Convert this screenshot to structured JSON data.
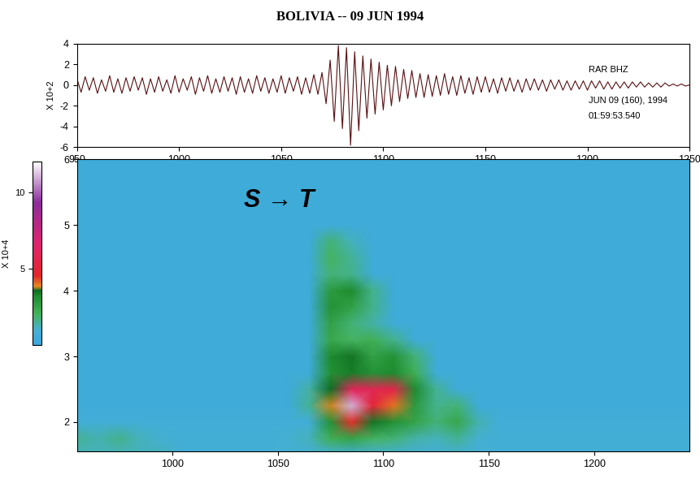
{
  "chart_data": [
    {
      "type": "line",
      "title": "BOLIVIA -- 09 JUN 1994",
      "y_label": "X 10+2",
      "annotations": [
        "RAR BHZ",
        "JUN 09 (160), 1994",
        "01:59:53.540"
      ],
      "xlim": [
        950,
        1250
      ],
      "xticks": [
        950,
        1000,
        1050,
        1100,
        1150,
        1200,
        1250
      ],
      "ylim": [
        -6,
        4
      ],
      "yticks": [
        -6,
        -4,
        -2,
        0,
        2,
        4
      ],
      "series": [
        {
          "color": "#5a0f12",
          "x": [
            950,
            952,
            954,
            956,
            958,
            960,
            962,
            964,
            966,
            968,
            970,
            972,
            974,
            976,
            978,
            980,
            982,
            984,
            986,
            988,
            990,
            992,
            994,
            996,
            998,
            1000,
            1002,
            1004,
            1006,
            1008,
            1010,
            1012,
            1014,
            1016,
            1018,
            1020,
            1022,
            1024,
            1026,
            1028,
            1030,
            1032,
            1034,
            1036,
            1038,
            1040,
            1042,
            1044,
            1046,
            1048,
            1050,
            1052,
            1054,
            1056,
            1058,
            1060,
            1062,
            1064,
            1066,
            1068,
            1070,
            1072,
            1074,
            1076,
            1078,
            1080,
            1082,
            1084,
            1086,
            1088,
            1090,
            1092,
            1094,
            1096,
            1098,
            1100,
            1102,
            1104,
            1106,
            1108,
            1110,
            1112,
            1114,
            1116,
            1118,
            1120,
            1122,
            1124,
            1126,
            1128,
            1130,
            1132,
            1134,
            1136,
            1138,
            1140,
            1142,
            1144,
            1146,
            1148,
            1150,
            1152,
            1154,
            1156,
            1158,
            1160,
            1162,
            1164,
            1166,
            1168,
            1170,
            1172,
            1174,
            1176,
            1178,
            1180,
            1182,
            1184,
            1186,
            1188,
            1190,
            1192,
            1194,
            1196,
            1198,
            1200,
            1202,
            1204,
            1206,
            1208,
            1210,
            1212,
            1214,
            1216,
            1218,
            1220,
            1222,
            1224,
            1226,
            1228,
            1230,
            1232,
            1234,
            1236,
            1238,
            1240,
            1242,
            1244,
            1246,
            1248,
            1250
          ],
          "values": [
            0.6,
            -0.7,
            0.8,
            -0.5,
            0.7,
            -0.8,
            0.5,
            -0.6,
            0.9,
            -0.7,
            0.6,
            -0.8,
            0.7,
            -0.6,
            0.8,
            -0.5,
            0.7,
            -0.9,
            0.6,
            -0.7,
            0.8,
            -0.6,
            0.5,
            -0.8,
            0.9,
            -0.7,
            0.6,
            -0.5,
            0.8,
            -0.9,
            0.7,
            -0.6,
            0.9,
            -0.8,
            0.6,
            -0.7,
            0.8,
            -0.6,
            0.7,
            -0.9,
            0.8,
            -0.7,
            0.6,
            -0.8,
            0.9,
            -0.6,
            0.7,
            -0.8,
            0.6,
            -0.7,
            0.9,
            -0.8,
            0.7,
            -0.6,
            0.8,
            -0.9,
            0.7,
            -0.8,
            1.0,
            -0.9,
            1.2,
            -1.8,
            2.4,
            -3.5,
            3.8,
            -4.2,
            3.6,
            -5.8,
            3.2,
            -4.4,
            2.8,
            -3.2,
            2.5,
            -2.8,
            2.2,
            -2.4,
            1.9,
            -2.0,
            1.8,
            -1.6,
            1.5,
            -1.3,
            1.4,
            -1.2,
            1.1,
            -1.2,
            1.0,
            -1.1,
            0.9,
            -1.0,
            1.1,
            -0.9,
            0.8,
            -1.0,
            0.9,
            -0.8,
            0.7,
            -0.9,
            0.8,
            -0.7,
            0.8,
            -0.7,
            0.6,
            -0.8,
            0.7,
            -0.6,
            0.7,
            -0.6,
            0.5,
            -0.7,
            0.6,
            -0.5,
            0.6,
            -0.5,
            0.5,
            -0.6,
            0.5,
            -0.4,
            0.5,
            -0.5,
            0.4,
            -0.5,
            0.4,
            -0.4,
            0.4,
            -0.5,
            0.4,
            -0.3,
            0.4,
            -0.4,
            0.3,
            -0.4,
            0.3,
            -0.3,
            0.3,
            -0.3,
            0.3,
            -0.2,
            0.3,
            -0.2,
            0.2,
            -0.2,
            0.2,
            -0.2,
            0.2,
            -0.1,
            0.1,
            -0.1,
            0.1,
            -0.1,
            0.0
          ]
        }
      ]
    },
    {
      "type": "heatmap",
      "annotations": [
        "S → T"
      ],
      "xlim": [
        955,
        1245
      ],
      "xticks": [
        1000,
        1050,
        1100,
        1150,
        1200
      ],
      "ylim": [
        1.55,
        6
      ],
      "yticks": [
        2,
        3,
        4,
        5,
        6
      ],
      "x": [
        955,
        965,
        975,
        985,
        995,
        1005,
        1015,
        1025,
        1035,
        1045,
        1055,
        1065,
        1075,
        1085,
        1095,
        1105,
        1115,
        1125,
        1135,
        1145,
        1155,
        1165,
        1175,
        1185,
        1195,
        1205,
        1215,
        1225,
        1235,
        1245
      ],
      "y": [
        1.5,
        1.75,
        2.0,
        2.25,
        2.5,
        2.75,
        3.0,
        3.25,
        3.5,
        3.75,
        4.0,
        4.25,
        4.5,
        4.75,
        5.0,
        5.25,
        5.5,
        5.75,
        6.0
      ],
      "cells": [
        [
          1.2,
          1.2,
          1.2,
          1.2,
          1.2,
          0.8,
          0.8,
          0.8,
          0.8,
          0.8,
          0.8,
          0.8,
          0.8,
          0.8,
          0.8,
          0.8,
          0.8,
          0.8,
          0.8,
          0.8,
          0.8,
          0.8,
          0.8,
          0.8,
          0.8,
          0.8,
          0.8,
          0.8,
          0.8,
          0.8
        ],
        [
          1.5,
          1.3,
          1.6,
          1.2,
          1.0,
          0.8,
          0.8,
          0.8,
          0.8,
          0.8,
          1.0,
          1.2,
          2.2,
          2.5,
          2.0,
          1.8,
          1.4,
          1.2,
          1.5,
          1.0,
          0.8,
          0.8,
          0.8,
          0.8,
          0.8,
          0.8,
          0.8,
          0.8,
          0.8,
          0.8
        ],
        [
          0.7,
          0.7,
          0.7,
          0.7,
          0.7,
          0.7,
          0.7,
          0.7,
          0.7,
          0.7,
          0.7,
          0.7,
          3.0,
          4.5,
          3.5,
          3.0,
          2.5,
          1.8,
          2.4,
          1.3,
          0.7,
          0.7,
          0.7,
          0.7,
          0.7,
          0.7,
          0.7,
          0.7,
          0.7,
          0.7
        ],
        [
          0.5,
          0.5,
          0.5,
          0.5,
          0.5,
          0.5,
          0.5,
          0.5,
          0.5,
          0.5,
          0.5,
          1.5,
          3.8,
          11.0,
          5.0,
          4.0,
          2.8,
          1.6,
          1.8,
          0.5,
          0.5,
          0.5,
          0.5,
          0.5,
          0.5,
          0.5,
          0.5,
          0.5,
          0.5,
          0.5
        ],
        [
          0.5,
          0.5,
          0.5,
          0.5,
          0.5,
          0.5,
          0.5,
          0.5,
          0.5,
          0.5,
          0.5,
          1.4,
          3.6,
          6.0,
          5.8,
          5.5,
          3.2,
          1.5,
          0.5,
          0.5,
          0.5,
          0.5,
          0.5,
          0.5,
          0.5,
          0.5,
          0.5,
          0.5,
          0.5,
          0.5
        ],
        [
          0.5,
          0.5,
          0.5,
          0.5,
          0.5,
          0.5,
          0.5,
          0.5,
          0.5,
          0.5,
          0.5,
          0.5,
          3.0,
          3.4,
          3.0,
          3.2,
          2.2,
          0.5,
          0.5,
          0.5,
          0.5,
          0.5,
          0.5,
          0.5,
          0.5,
          0.5,
          0.5,
          0.5,
          0.5,
          0.5
        ],
        [
          0.5,
          0.5,
          0.5,
          0.5,
          0.5,
          0.5,
          0.5,
          0.5,
          0.5,
          0.5,
          0.5,
          0.5,
          3.2,
          3.5,
          2.6,
          3.0,
          1.8,
          0.5,
          0.5,
          0.5,
          0.5,
          0.5,
          0.5,
          0.5,
          0.5,
          0.5,
          0.5,
          0.5,
          0.5,
          0.5
        ],
        [
          0.5,
          0.5,
          0.5,
          0.5,
          0.5,
          0.5,
          0.5,
          0.5,
          0.5,
          0.5,
          0.5,
          0.5,
          2.4,
          2.0,
          2.2,
          1.6,
          0.5,
          0.5,
          0.5,
          0.5,
          0.5,
          0.5,
          0.5,
          0.5,
          0.5,
          0.5,
          0.5,
          0.5,
          0.5,
          0.5
        ],
        [
          0.5,
          0.5,
          0.5,
          0.5,
          0.5,
          0.5,
          0.5,
          0.5,
          0.5,
          0.5,
          0.5,
          0.5,
          2.6,
          1.8,
          1.4,
          0.5,
          0.5,
          0.5,
          0.5,
          0.5,
          0.5,
          0.5,
          0.5,
          0.5,
          0.5,
          0.5,
          0.5,
          0.5,
          0.5,
          0.5
        ],
        [
          0.5,
          0.5,
          0.5,
          0.5,
          0.5,
          0.5,
          0.5,
          0.5,
          0.5,
          0.5,
          0.5,
          0.5,
          3.0,
          2.6,
          1.6,
          0.5,
          0.5,
          0.5,
          0.5,
          0.5,
          0.5,
          0.5,
          0.5,
          0.5,
          0.5,
          0.5,
          0.5,
          0.5,
          0.5,
          0.5
        ],
        [
          0.5,
          0.5,
          0.5,
          0.5,
          0.5,
          0.5,
          0.5,
          0.5,
          0.5,
          0.5,
          0.5,
          0.5,
          2.8,
          3.2,
          1.6,
          0.5,
          0.5,
          0.5,
          0.5,
          0.5,
          0.5,
          0.5,
          0.5,
          0.5,
          0.5,
          0.5,
          0.5,
          0.5,
          0.5,
          0.5
        ],
        [
          0.5,
          0.5,
          0.5,
          0.5,
          0.5,
          0.5,
          0.5,
          0.5,
          0.5,
          0.5,
          0.5,
          0.5,
          1.8,
          1.6,
          0.5,
          0.5,
          0.5,
          0.5,
          0.5,
          0.5,
          0.5,
          0.5,
          0.5,
          0.5,
          0.5,
          0.5,
          0.5,
          0.5,
          0.5,
          0.5
        ],
        [
          0.5,
          0.5,
          0.5,
          0.5,
          0.5,
          0.5,
          0.5,
          0.5,
          0.5,
          0.5,
          0.5,
          0.5,
          2.0,
          1.5,
          0.5,
          0.5,
          0.5,
          0.5,
          0.5,
          0.5,
          0.5,
          0.5,
          0.5,
          0.5,
          0.5,
          0.5,
          0.5,
          0.5,
          0.5,
          0.5
        ],
        [
          0.5,
          0.5,
          0.5,
          0.5,
          0.5,
          0.5,
          0.5,
          0.5,
          0.5,
          0.5,
          0.5,
          0.5,
          1.8,
          1.2,
          0.5,
          0.5,
          0.5,
          0.5,
          0.5,
          0.5,
          0.5,
          0.5,
          0.5,
          0.5,
          0.5,
          0.5,
          0.5,
          0.5,
          0.5,
          0.5
        ],
        [
          0.5,
          0.5,
          0.5,
          0.5,
          0.5,
          0.5,
          0.5,
          0.5,
          0.5,
          0.5,
          0.5,
          0.5,
          0.5,
          0.5,
          0.5,
          0.5,
          0.5,
          0.5,
          0.5,
          0.5,
          0.5,
          0.5,
          0.5,
          0.5,
          0.5,
          0.5,
          0.5,
          0.5,
          0.5,
          0.5
        ],
        [
          0.5,
          0.5,
          0.5,
          0.5,
          0.5,
          0.5,
          0.5,
          0.5,
          0.5,
          0.5,
          0.5,
          0.5,
          0.5,
          0.5,
          0.5,
          0.5,
          0.5,
          0.5,
          0.5,
          0.5,
          0.5,
          0.5,
          0.5,
          0.5,
          0.5,
          0.5,
          0.5,
          0.5,
          0.5,
          0.5
        ],
        [
          0.5,
          0.5,
          0.5,
          0.5,
          0.5,
          0.5,
          0.5,
          0.5,
          0.5,
          0.5,
          0.5,
          0.5,
          0.5,
          0.5,
          0.5,
          0.5,
          0.5,
          0.5,
          0.5,
          0.5,
          0.5,
          0.5,
          0.5,
          0.5,
          0.5,
          0.5,
          0.5,
          0.5,
          0.5,
          0.5
        ],
        [
          0.5,
          0.5,
          0.5,
          0.5,
          0.5,
          0.5,
          0.5,
          0.5,
          0.5,
          0.5,
          0.5,
          0.5,
          0.5,
          0.5,
          0.5,
          0.5,
          0.5,
          0.5,
          0.5,
          0.5,
          0.5,
          0.5,
          0.5,
          0.5,
          0.5,
          0.5,
          0.5,
          0.5,
          0.5,
          0.5
        ],
        [
          0.5,
          0.5,
          0.5,
          0.5,
          0.5,
          0.5,
          0.5,
          0.5,
          0.5,
          0.5,
          0.5,
          0.5,
          0.5,
          0.5,
          0.5,
          0.5,
          0.5,
          0.5,
          0.5,
          0.5,
          0.5,
          0.5,
          0.5,
          0.5,
          0.5,
          0.5,
          0.5,
          0.5,
          0.5,
          0.5
        ]
      ],
      "colorbar": {
        "label": "X 10+4",
        "range": [
          0,
          12
        ],
        "ticks": [
          5,
          10
        ]
      }
    }
  ]
}
